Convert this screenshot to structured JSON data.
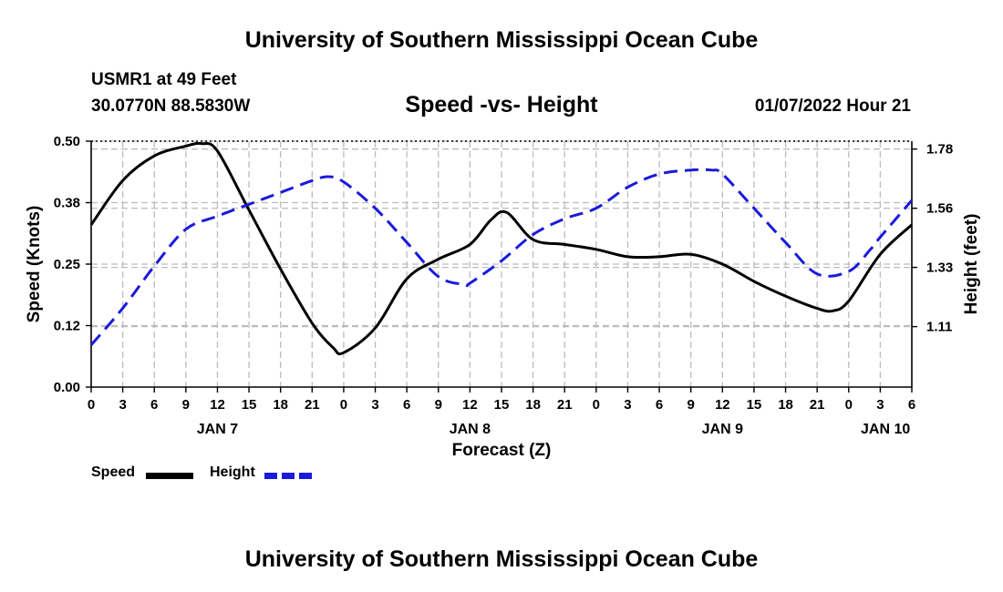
{
  "header": {
    "title": "University of Southern Mississippi Ocean Cube",
    "station": "USMR1 at 49 Feet",
    "coordinates": "30.0770N  88.5830W",
    "timestamp": "01/07/2022 Hour 21"
  },
  "footer": {
    "title": "University of Southern Mississippi Ocean Cube"
  },
  "colors": {
    "speed": "#000000",
    "height": "#1a1adc",
    "grid": "#bcbcbc"
  },
  "legend": {
    "speed_label": "Speed",
    "height_label": "Height"
  },
  "chart_data": {
    "type": "line",
    "title": "Speed -vs- Height",
    "xlabel": "Forecast (Z)",
    "ylabel": "Speed (Knots)",
    "ylabel_right": "Height (feet)",
    "x_range": [
      0,
      78
    ],
    "ylim": [
      0,
      0.5
    ],
    "ylim_right": [
      0.88,
      1.815
    ],
    "x_ticks": [
      0,
      3,
      6,
      9,
      12,
      15,
      18,
      21,
      24,
      27,
      30,
      33,
      36,
      39,
      42,
      45,
      48,
      51,
      54,
      57,
      60,
      63,
      66,
      69,
      72,
      75,
      78
    ],
    "x_tick_labels": [
      "0",
      "3",
      "6",
      "9",
      "12",
      "15",
      "18",
      "21",
      "0",
      "3",
      "6",
      "9",
      "12",
      "15",
      "18",
      "21",
      "0",
      "3",
      "6",
      "9",
      "12",
      "15",
      "18",
      "21",
      "0",
      "3",
      "6"
    ],
    "date_labels": [
      {
        "x": 12,
        "label": "JAN 7"
      },
      {
        "x": 36,
        "label": "JAN 8"
      },
      {
        "x": 60,
        "label": "JAN 9"
      },
      {
        "x": 75.5,
        "label": "JAN 10"
      }
    ],
    "y_ticks": [
      0,
      0.125,
      0.25,
      0.375,
      0.5
    ],
    "y_tick_labels": [
      "0.00",
      "0.12",
      "0.25",
      "0.38",
      "0.50"
    ],
    "y_ticks_right": [
      1.11,
      1.335,
      1.56,
      1.785
    ],
    "y_tick_labels_right": [
      "1.11",
      "1.33",
      "1.56",
      "1.78"
    ],
    "grid": true,
    "series": [
      {
        "name": "Speed",
        "axis": "left",
        "x": [
          0,
          3,
          6,
          9,
          10.5,
          12,
          15,
          18,
          21,
          23,
          24,
          27,
          30,
          33,
          36,
          38,
          39.5,
          42,
          45,
          48,
          51,
          54,
          57,
          60,
          63,
          66,
          69,
          70.5,
          72,
          75,
          78
        ],
        "y": [
          0.33,
          0.42,
          0.47,
          0.49,
          0.495,
          0.48,
          0.36,
          0.24,
          0.13,
          0.08,
          0.07,
          0.12,
          0.22,
          0.26,
          0.29,
          0.34,
          0.355,
          0.3,
          0.29,
          0.28,
          0.265,
          0.265,
          0.27,
          0.25,
          0.215,
          0.185,
          0.16,
          0.155,
          0.175,
          0.27,
          0.33
        ]
      },
      {
        "name": "Height",
        "axis": "right",
        "x": [
          0,
          3,
          6,
          9,
          12,
          15,
          18,
          21,
          22.5,
          24,
          27,
          30,
          33,
          35.5,
          36,
          39,
          42,
          45,
          48,
          51,
          54,
          57,
          59,
          60,
          63,
          66,
          69,
          72,
          74,
          75,
          78
        ],
        "y": [
          1.04,
          1.18,
          1.34,
          1.48,
          1.53,
          1.575,
          1.62,
          1.665,
          1.68,
          1.66,
          1.56,
          1.43,
          1.3,
          1.27,
          1.275,
          1.36,
          1.46,
          1.52,
          1.56,
          1.64,
          1.69,
          1.705,
          1.705,
          1.69,
          1.56,
          1.43,
          1.31,
          1.32,
          1.4,
          1.45,
          1.59
        ]
      }
    ]
  }
}
